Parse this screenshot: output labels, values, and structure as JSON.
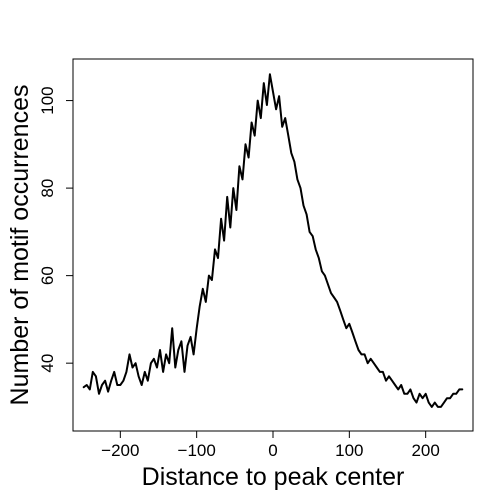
{
  "chart_data": {
    "type": "line",
    "title": "",
    "xlabel": "Distance to peak center",
    "ylabel": "Number of motif occurrences",
    "xlim": [
      -262,
      262
    ],
    "ylim": [
      24.5,
      109.5
    ],
    "grid": false,
    "legend": "none",
    "x_ticks": [
      {
        "value": -200,
        "label": "−200"
      },
      {
        "value": -100,
        "label": "−100"
      },
      {
        "value": 0,
        "label": "0"
      },
      {
        "value": 100,
        "label": "100"
      },
      {
        "value": 200,
        "label": "200"
      }
    ],
    "y_ticks": [
      {
        "value": 40,
        "label": "40"
      },
      {
        "value": 60,
        "label": "60"
      },
      {
        "value": 80,
        "label": "80"
      },
      {
        "value": 100,
        "label": "100"
      }
    ],
    "series": [
      {
        "color": "#000000",
        "x": [
          -248,
          -244,
          -240,
          -236,
          -232,
          -228,
          -224,
          -220,
          -216,
          -212,
          -208,
          -204,
          -200,
          -196,
          -192,
          -188,
          -184,
          -180,
          -176,
          -172,
          -168,
          -164,
          -160,
          -156,
          -152,
          -148,
          -144,
          -140,
          -136,
          -132,
          -128,
          -124,
          -120,
          -116,
          -112,
          -108,
          -104,
          -100,
          -96,
          -92,
          -88,
          -84,
          -80,
          -76,
          -72,
          -68,
          -64,
          -60,
          -56,
          -52,
          -48,
          -44,
          -40,
          -36,
          -32,
          -28,
          -24,
          -20,
          -16,
          -12,
          -8,
          -4,
          0,
          4,
          8,
          12,
          16,
          20,
          24,
          28,
          32,
          36,
          40,
          44,
          48,
          52,
          56,
          60,
          64,
          68,
          72,
          76,
          80,
          84,
          88,
          92,
          96,
          100,
          104,
          108,
          112,
          116,
          120,
          124,
          128,
          132,
          136,
          140,
          144,
          148,
          152,
          156,
          160,
          164,
          168,
          172,
          176,
          180,
          184,
          188,
          192,
          196,
          200,
          204,
          208,
          212,
          216,
          220,
          224,
          228,
          232,
          236,
          240,
          244,
          248
        ],
        "y": [
          34.5,
          35,
          34,
          38,
          37,
          33,
          35,
          36,
          33.5,
          36,
          38,
          35,
          35,
          36,
          38,
          42,
          39,
          40,
          37,
          35,
          38,
          36,
          40,
          41,
          39,
          43,
          38,
          42,
          40,
          48,
          39,
          43,
          45,
          38,
          44,
          46,
          42,
          48,
          53,
          57,
          54,
          60,
          59,
          66,
          64,
          73,
          68,
          78,
          71,
          80,
          75,
          85,
          82,
          90,
          87,
          95,
          92,
          100,
          96,
          104,
          99,
          106,
          102,
          98,
          101,
          94,
          96,
          92,
          88,
          86,
          82,
          80,
          76,
          74,
          70,
          69,
          66,
          64,
          61,
          60,
          58,
          56,
          55,
          54,
          52,
          50,
          48,
          49,
          47,
          45,
          43,
          42,
          42,
          40,
          41,
          40,
          39,
          38,
          38,
          36,
          37,
          36,
          35,
          34,
          35,
          33,
          33,
          34,
          32,
          31,
          33,
          32,
          33,
          31,
          30,
          31,
          30,
          30,
          31,
          32,
          32,
          33,
          33,
          34,
          34
        ]
      }
    ]
  }
}
